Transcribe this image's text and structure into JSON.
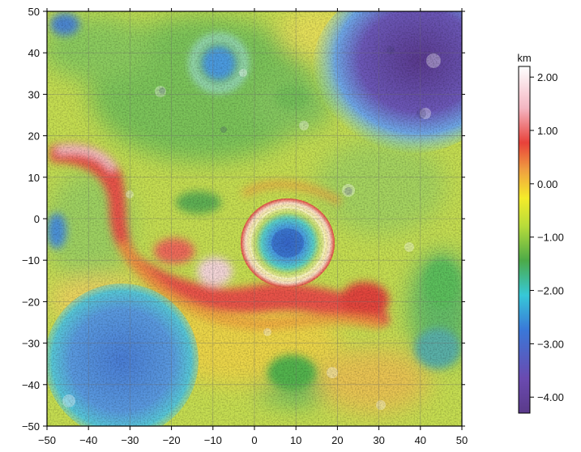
{
  "map": {
    "x_range": [
      -50,
      50
    ],
    "y_range": [
      -50,
      50
    ],
    "x_ticks": [
      "−50",
      "−40",
      "−30",
      "−20",
      "−10",
      "0",
      "10",
      "20",
      "30",
      "40",
      "50"
    ],
    "y_ticks": [
      "50",
      "40",
      "30",
      "20",
      "10",
      "0",
      "−10",
      "−20",
      "−30",
      "−40",
      "−50"
    ],
    "grid": true
  },
  "colorbar": {
    "unit": "km",
    "ticks": [
      "2.00",
      "1.00",
      "0.00",
      "−1.00",
      "−2.00",
      "−3.00",
      "−4.00"
    ],
    "range": [
      -4.3,
      2.2
    ],
    "colors": {
      "top": "#ffffff",
      "pink": "#f4b6c2",
      "red": "#e8413a",
      "orange": "#f0a040",
      "yellow": "#f4ec2a",
      "yellowgreen": "#b8dc3a",
      "green": "#4caa48",
      "cyan": "#36c8d8",
      "blue": "#3a78d8",
      "violet": "#6a4ab0",
      "purple": "#5a3a8a"
    }
  }
}
